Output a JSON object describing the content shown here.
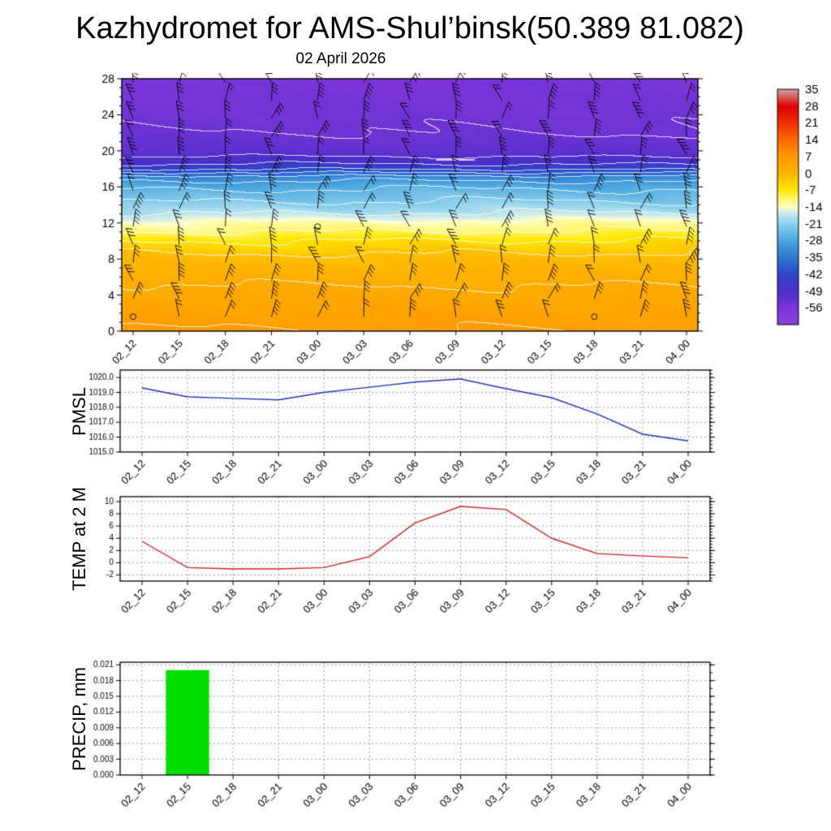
{
  "title": "Kazhydromet for AMS-Shul’binsk(50.389 81.082)",
  "subtitle": "02 April 2026",
  "x_categories": [
    "02_12",
    "02_15",
    "02_18",
    "02_21",
    "03_00",
    "03_03",
    "03_06",
    "03_09",
    "03_12",
    "03_15",
    "03_18",
    "03_21",
    "04_00"
  ],
  "chart_data": [
    {
      "name": "upper-air-temperature-cross-section",
      "type": "heatmap",
      "title": "02 April 2026",
      "ylim": [
        0,
        28
      ],
      "yticks": [
        0,
        4,
        8,
        12,
        16,
        20,
        24,
        28
      ],
      "has_wind_barbs": true,
      "contour_interval": 4,
      "temperature_profile": {
        "levels": [
          0,
          4,
          8,
          9,
          10,
          11,
          12,
          13,
          14,
          15,
          16,
          17,
          18,
          19,
          20,
          22,
          28
        ],
        "values": [
          6,
          3,
          -1,
          -3,
          -6,
          -10,
          -13,
          -18,
          -21,
          -24,
          -27,
          -32,
          -43,
          -49,
          -52,
          -54,
          -56
        ]
      },
      "colorbar": {
        "labels": [
          35,
          28,
          21,
          14,
          7,
          0,
          -7,
          -14,
          -21,
          -28,
          -35,
          -42,
          -49,
          -56
        ],
        "range": [
          35,
          -63
        ],
        "stops": [
          [
            35,
            "#d4a0a0"
          ],
          [
            28,
            "#e00000"
          ],
          [
            21,
            "#f03000"
          ],
          [
            14,
            "#ff6a00"
          ],
          [
            7,
            "#ff9a00"
          ],
          [
            0,
            "#ffb400"
          ],
          [
            -4,
            "#ffd200"
          ],
          [
            -7,
            "#ffe800"
          ],
          [
            -11,
            "#fff780"
          ],
          [
            -14,
            "#ffffc0"
          ],
          [
            -16,
            "#d8f0e8"
          ],
          [
            -19,
            "#a8dcee"
          ],
          [
            -21,
            "#8cd0ec"
          ],
          [
            -28,
            "#4ba6de"
          ],
          [
            -35,
            "#2f7ad2"
          ],
          [
            -42,
            "#2f46c8"
          ],
          [
            -49,
            "#4b2fc8"
          ],
          [
            -56,
            "#7a35d8"
          ],
          [
            -63,
            "#8a40e0"
          ]
        ]
      }
    },
    {
      "name": "pmsl",
      "type": "line",
      "ylabel": "PMSL",
      "line_color": "#2233bb",
      "ylim": [
        1015,
        1020.5
      ],
      "yticks": [
        1015,
        1016,
        1017,
        1018,
        1019,
        1020
      ],
      "ytick_decimals": 1,
      "minor_step": 0.25,
      "values": [
        1019.3,
        1018.7,
        1018.6,
        1018.5,
        1019.0,
        1019.35,
        1019.7,
        1019.9,
        1019.25,
        1018.65,
        1017.55,
        1016.2,
        1015.75
      ]
    },
    {
      "name": "temp-at-2m",
      "type": "line",
      "ylabel": "TEMP at 2 M",
      "line_color": "#cc2222",
      "ylim": [
        -3,
        10.8
      ],
      "yticks": [
        -2,
        0,
        2,
        4,
        6,
        8,
        10
      ],
      "ytick_decimals": 0,
      "minor_step": 0.5,
      "values": [
        3.5,
        -0.8,
        -1.0,
        -1.0,
        -0.8,
        1.0,
        6.5,
        9.2,
        8.7,
        4.0,
        1.5,
        1.1,
        0.8
      ]
    },
    {
      "name": "precip",
      "type": "bar",
      "ylabel": "PRECIP, mm",
      "bar_color": "#00dd00",
      "ylim": [
        0,
        0.0215
      ],
      "yticks": [
        0,
        0.003,
        0.006,
        0.009,
        0.012,
        0.015,
        0.018,
        0.021
      ],
      "ytick_decimals": 3,
      "minor_step": 0.0015,
      "values": [
        0,
        0.02,
        0,
        0,
        0,
        0,
        0,
        0,
        0,
        0,
        0,
        0,
        0
      ]
    }
  ]
}
